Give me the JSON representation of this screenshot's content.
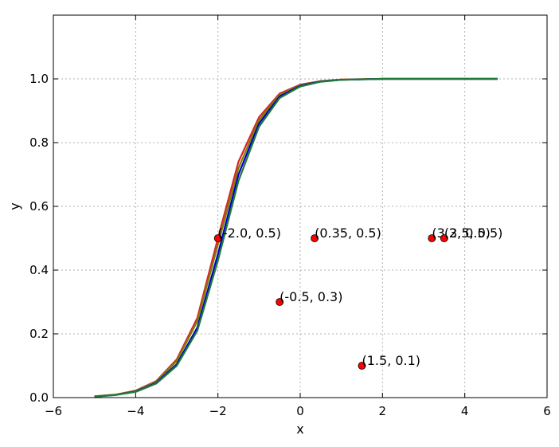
{
  "chart_data": {
    "type": "line",
    "title": "",
    "xlabel": "x",
    "ylabel": "y",
    "xlim": [
      -6,
      6
    ],
    "ylim": [
      0,
      1.2
    ],
    "grid": true,
    "x_ticks": [
      "−6",
      "−4",
      "−2",
      "0",
      "2",
      "4",
      "6"
    ],
    "x_tick_values": [
      -6,
      -4,
      -2,
      0,
      2,
      4,
      6
    ],
    "y_ticks": [
      "0.0",
      "0.2",
      "0.4",
      "0.6",
      "0.8",
      "1.0"
    ],
    "y_tick_values": [
      0.0,
      0.2,
      0.4,
      0.6,
      0.8,
      1.0
    ],
    "series": [
      {
        "color": "#d62728",
        "x_range": [
          -5.0,
          4.8
        ],
        "values": [
          [
            -5.0,
            0.004
          ],
          [
            -4.5,
            0.009
          ],
          [
            -4.0,
            0.022
          ],
          [
            -3.5,
            0.052
          ],
          [
            -3.0,
            0.12
          ],
          [
            -2.5,
            0.25
          ],
          [
            -2.0,
            0.5
          ],
          [
            -1.5,
            0.74
          ],
          [
            -1.0,
            0.88
          ],
          [
            -0.5,
            0.954
          ],
          [
            0.0,
            0.982
          ],
          [
            0.5,
            0.993
          ],
          [
            1.0,
            0.998
          ],
          [
            2.0,
            1.0
          ],
          [
            3.0,
            1.0
          ],
          [
            4.8,
            1.0
          ]
        ]
      },
      {
        "color": "#7f7f00",
        "x_range": [
          -5.0,
          4.8
        ],
        "values": [
          [
            -5.0,
            0.004
          ],
          [
            -4.5,
            0.009
          ],
          [
            -4.0,
            0.021
          ],
          [
            -3.5,
            0.05
          ],
          [
            -3.0,
            0.115
          ],
          [
            -2.5,
            0.24
          ],
          [
            -2.0,
            0.48
          ],
          [
            -1.5,
            0.72
          ],
          [
            -1.0,
            0.87
          ],
          [
            -0.5,
            0.95
          ],
          [
            0.0,
            0.98
          ],
          [
            0.5,
            0.993
          ],
          [
            1.0,
            0.998
          ],
          [
            2.0,
            1.0
          ],
          [
            3.0,
            1.0
          ],
          [
            4.8,
            1.0
          ]
        ]
      },
      {
        "color": "#0000cc",
        "x_range": [
          -5.0,
          4.8
        ],
        "values": [
          [
            -5.0,
            0.003
          ],
          [
            -4.5,
            0.008
          ],
          [
            -4.0,
            0.019
          ],
          [
            -3.5,
            0.046
          ],
          [
            -3.0,
            0.105
          ],
          [
            -2.5,
            0.22
          ],
          [
            -2.0,
            0.45
          ],
          [
            -1.5,
            0.7
          ],
          [
            -1.0,
            0.86
          ],
          [
            -0.5,
            0.945
          ],
          [
            0.0,
            0.978
          ],
          [
            0.5,
            0.992
          ],
          [
            1.0,
            0.997
          ],
          [
            2.0,
            1.0
          ],
          [
            3.0,
            1.0
          ],
          [
            4.8,
            1.0
          ]
        ]
      },
      {
        "color": "#1f7a3a",
        "x_range": [
          -5.0,
          4.8
        ],
        "values": [
          [
            -5.0,
            0.003
          ],
          [
            -4.5,
            0.008
          ],
          [
            -4.0,
            0.018
          ],
          [
            -3.5,
            0.044
          ],
          [
            -3.0,
            0.1
          ],
          [
            -2.5,
            0.21
          ],
          [
            -2.0,
            0.43
          ],
          [
            -1.5,
            0.68
          ],
          [
            -1.0,
            0.85
          ],
          [
            -0.5,
            0.94
          ],
          [
            0.0,
            0.976
          ],
          [
            0.5,
            0.991
          ],
          [
            1.0,
            0.997
          ],
          [
            2.0,
            1.0
          ],
          [
            3.0,
            1.0
          ],
          [
            4.8,
            1.0
          ]
        ]
      }
    ],
    "points": [
      {
        "x": -2.0,
        "y": 0.5,
        "label": "(-2.0, 0.5)"
      },
      {
        "x": -0.5,
        "y": 0.3,
        "label": "(-0.5, 0.3)"
      },
      {
        "x": 0.35,
        "y": 0.5,
        "label": "(0.35, 0.5)"
      },
      {
        "x": 1.5,
        "y": 0.1,
        "label": "(1.5, 0.1)"
      },
      {
        "x": 3.2,
        "y": 0.5,
        "label": "(3.2, 0.5)"
      },
      {
        "x": 3.5,
        "y": 0.5,
        "label": "(3.5, 0.5)"
      }
    ],
    "point_color": "#ff0000"
  }
}
